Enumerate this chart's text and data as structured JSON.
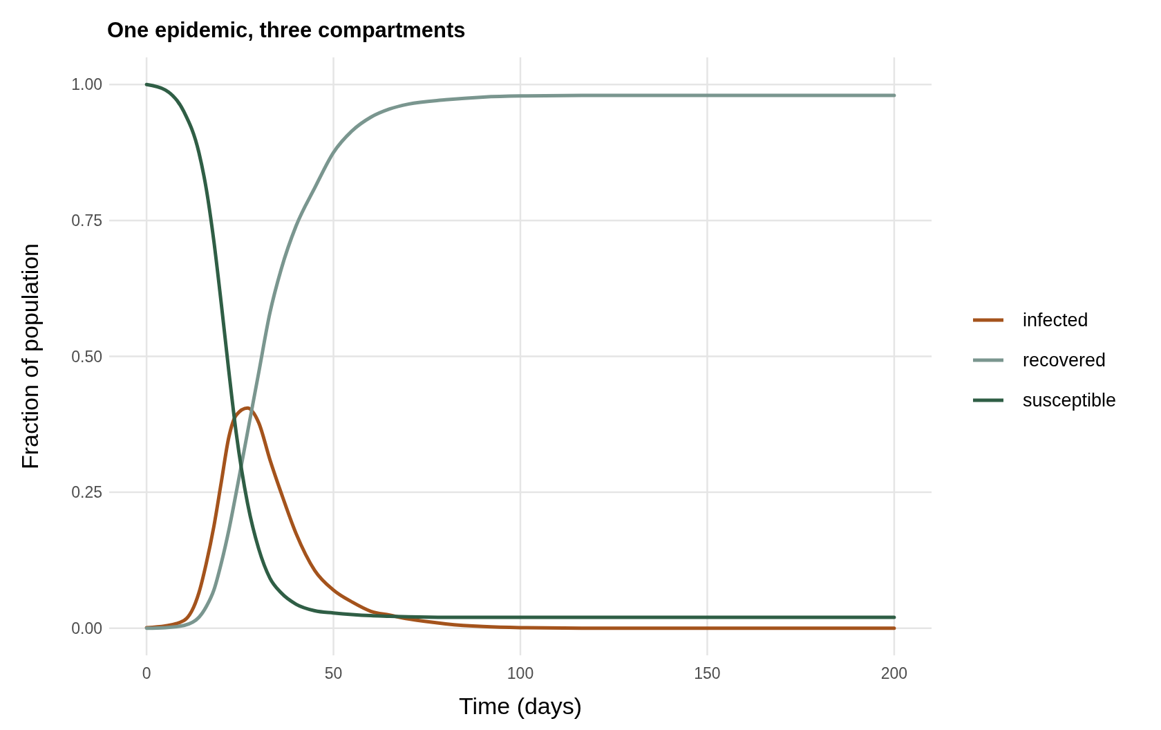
{
  "chart_data": {
    "type": "line",
    "title": "One epidemic, three compartments",
    "xlabel": "Time (days)",
    "ylabel": "Fraction of population",
    "x": [
      0,
      5,
      10,
      14,
      16,
      18,
      20,
      22,
      24,
      27,
      30,
      33,
      36,
      40,
      45,
      50,
      55,
      60,
      65,
      70,
      80,
      90,
      100,
      120,
      150,
      200
    ],
    "series": [
      {
        "name": "infected",
        "color": "#a4531c",
        "values": [
          0.001,
          0.004,
          0.014,
          0.065,
          0.12,
          0.187,
          0.269,
          0.351,
          0.392,
          0.405,
          0.378,
          0.31,
          0.249,
          0.174,
          0.106,
          0.07,
          0.048,
          0.031,
          0.024,
          0.017,
          0.008,
          0.003,
          0.001,
          0,
          0,
          0
        ]
      },
      {
        "name": "recovered",
        "color": "#7a968f",
        "values": [
          0,
          0.001,
          0.005,
          0.02,
          0.04,
          0.07,
          0.12,
          0.18,
          0.25,
          0.36,
          0.47,
          0.58,
          0.66,
          0.74,
          0.81,
          0.875,
          0.915,
          0.94,
          0.955,
          0.964,
          0.972,
          0.977,
          0.979,
          0.98,
          0.98,
          0.98
        ]
      },
      {
        "name": "susceptible",
        "color": "#2f5e45",
        "values": [
          1,
          0.99,
          0.95,
          0.875,
          0.807,
          0.712,
          0.596,
          0.473,
          0.358,
          0.23,
          0.146,
          0.092,
          0.065,
          0.044,
          0.032,
          0.028,
          0.025,
          0.023,
          0.022,
          0.021,
          0.02,
          0.02,
          0.02,
          0.02,
          0.02,
          0.02
        ]
      }
    ],
    "xlim": [
      -10,
      210
    ],
    "ylim": [
      -0.05,
      1.05
    ],
    "xticks": [
      0,
      50,
      100,
      150,
      200
    ],
    "yticks": [
      {
        "value": 0,
        "label": "0.00"
      },
      {
        "value": 0.25,
        "label": "0.25"
      },
      {
        "value": 0.5,
        "label": "0.50"
      },
      {
        "value": 0.75,
        "label": "0.75"
      },
      {
        "value": 1,
        "label": "1.00"
      }
    ],
    "grid": true,
    "legend": "right",
    "line_style": "solid"
  }
}
